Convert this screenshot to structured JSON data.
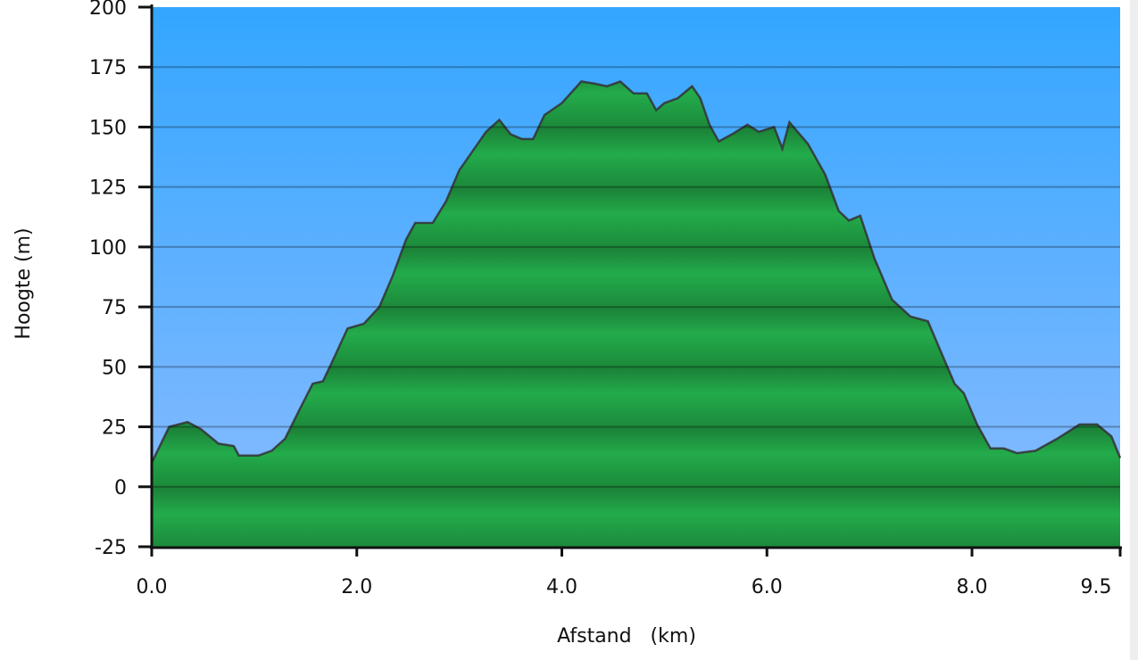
{
  "chart_data": {
    "type": "area",
    "xlabel": "Afstand   (km)",
    "ylabel": "Hoogte (m)",
    "xlim": [
      0,
      9.44
    ],
    "ylim": [
      -25,
      200
    ],
    "x_ticks": [
      0,
      2,
      4,
      6,
      8
    ],
    "x_tick_labels": [
      "0.0",
      "2.0",
      "4.0",
      "6.0",
      "8.0"
    ],
    "x_end_label": "9.5",
    "y_ticks": [
      -25,
      0,
      25,
      50,
      75,
      100,
      125,
      150,
      175,
      200
    ],
    "y_tick_labels": [
      "-25",
      "0",
      "25",
      "50",
      "75",
      "100",
      "125",
      "150",
      "175",
      "200"
    ],
    "grid": true,
    "colors": {
      "sky_top": "#33a6ff",
      "sky_bottom": "#8cbcff",
      "fill": "#22aa4a",
      "fill_dark": "#1d8a3a",
      "line": "#333333"
    },
    "x": [
      0,
      0.17,
      0.35,
      0.48,
      0.65,
      0.8,
      0.85,
      1.04,
      1.17,
      1.3,
      1.44,
      1.57,
      1.67,
      1.78,
      1.91,
      2.07,
      2.22,
      2.35,
      2.48,
      2.57,
      2.74,
      2.87,
      3.0,
      3.13,
      3.26,
      3.39,
      3.5,
      3.61,
      3.72,
      3.83,
      4.0,
      4.19,
      4.33,
      4.44,
      4.57,
      4.7,
      4.83,
      4.92,
      5.0,
      5.13,
      5.27,
      5.35,
      5.44,
      5.53,
      5.66,
      5.81,
      5.92,
      6.07,
      6.15,
      6.22,
      6.4,
      6.57,
      6.7,
      6.8,
      6.91,
      7.05,
      7.22,
      7.4,
      7.57,
      7.7,
      7.83,
      7.92,
      8.05,
      8.18,
      8.31,
      8.44,
      8.62,
      8.83,
      9.05,
      9.22,
      9.36,
      9.44
    ],
    "y": [
      10,
      25,
      27,
      24,
      18,
      17,
      13,
      13,
      15,
      20,
      32,
      43,
      44,
      54,
      66,
      68,
      75,
      88,
      103,
      110,
      110,
      119,
      132,
      140,
      148,
      153,
      147,
      145,
      145,
      155,
      160,
      169,
      168,
      167,
      169,
      164,
      164,
      157,
      160,
      162,
      167,
      162,
      151,
      144,
      147,
      151,
      148,
      150,
      141,
      152,
      143,
      130,
      115,
      111,
      113,
      95,
      78,
      71,
      69,
      56,
      43,
      39,
      26,
      16,
      16,
      14,
      15,
      20,
      26,
      26,
      21,
      12
    ]
  }
}
